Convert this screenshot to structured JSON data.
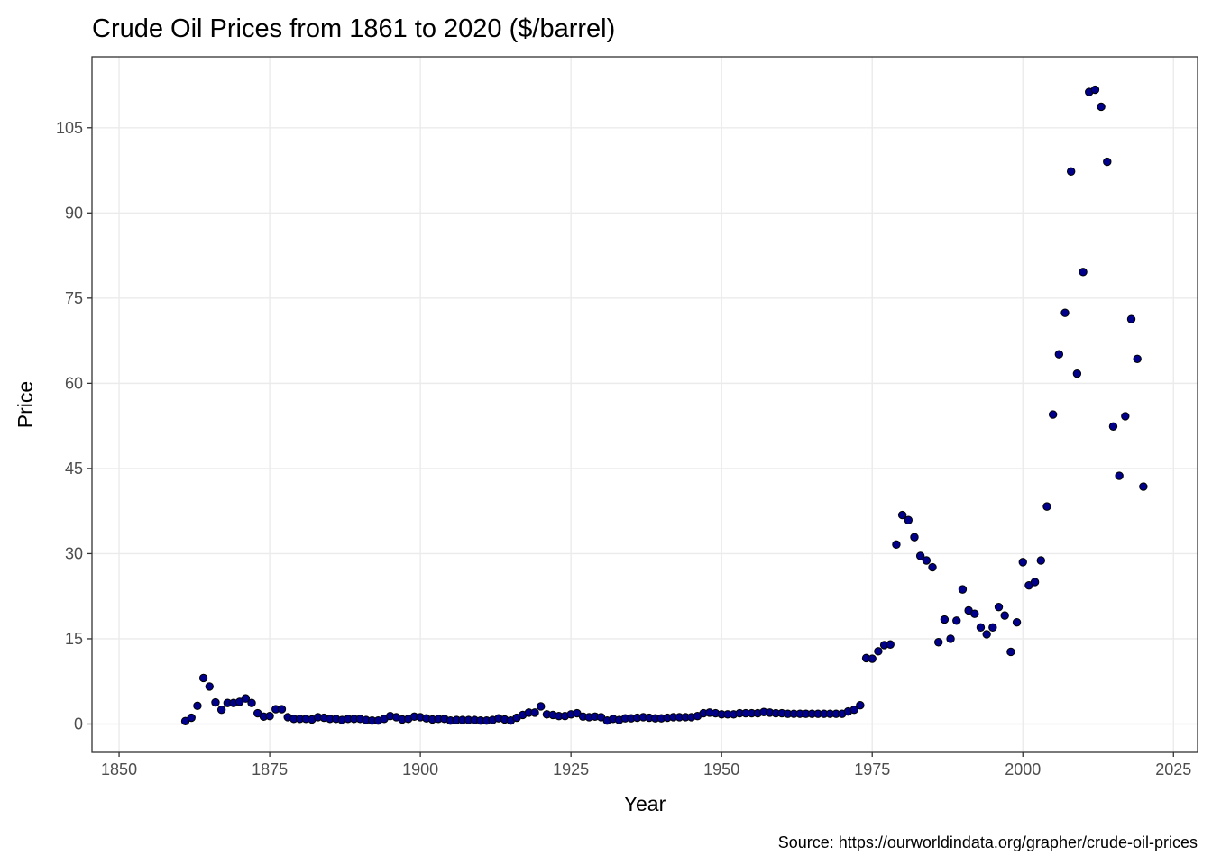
{
  "chart_data": {
    "type": "scatter",
    "title": "Crude Oil Prices from 1861 to 2020 ($/barrel)",
    "xlabel": "Year",
    "ylabel": "Price",
    "caption": "Source: https://ourworldindata.org/grapher/crude-oil-prices",
    "xlim": [
      1845.5,
      2029
    ],
    "ylim": [
      -5,
      117.5
    ],
    "x_ticks": [
      1850,
      1875,
      1900,
      1925,
      1950,
      1975,
      2000,
      2025
    ],
    "y_ticks": [
      0,
      15,
      30,
      45,
      60,
      75,
      90,
      105
    ],
    "grid": true,
    "legend": "none",
    "point_color": "#00008b",
    "point_outline": "#000000",
    "x": [
      1861,
      1862,
      1863,
      1864,
      1865,
      1866,
      1867,
      1868,
      1869,
      1870,
      1871,
      1872,
      1873,
      1874,
      1875,
      1876,
      1877,
      1878,
      1879,
      1880,
      1881,
      1882,
      1883,
      1884,
      1885,
      1886,
      1887,
      1888,
      1889,
      1890,
      1891,
      1892,
      1893,
      1894,
      1895,
      1896,
      1897,
      1898,
      1899,
      1900,
      1901,
      1902,
      1903,
      1904,
      1905,
      1906,
      1907,
      1908,
      1909,
      1910,
      1911,
      1912,
      1913,
      1914,
      1915,
      1916,
      1917,
      1918,
      1919,
      1920,
      1921,
      1922,
      1923,
      1924,
      1925,
      1926,
      1927,
      1928,
      1929,
      1930,
      1931,
      1932,
      1933,
      1934,
      1935,
      1936,
      1937,
      1938,
      1939,
      1940,
      1941,
      1942,
      1943,
      1944,
      1945,
      1946,
      1947,
      1948,
      1949,
      1950,
      1951,
      1952,
      1953,
      1954,
      1955,
      1956,
      1957,
      1958,
      1959,
      1960,
      1961,
      1962,
      1963,
      1964,
      1965,
      1966,
      1967,
      1968,
      1969,
      1970,
      1971,
      1972,
      1973,
      1974,
      1975,
      1976,
      1977,
      1978,
      1979,
      1980,
      1981,
      1982,
      1983,
      1984,
      1985,
      1986,
      1987,
      1988,
      1989,
      1990,
      1991,
      1992,
      1993,
      1994,
      1995,
      1996,
      1997,
      1998,
      1999,
      2000,
      2001,
      2002,
      2003,
      2004,
      2005,
      2006,
      2007,
      2008,
      2009,
      2010,
      2011,
      2012,
      2013,
      2014,
      2015,
      2016,
      2017,
      2018,
      2019,
      2020
    ],
    "y": [
      0.5,
      1.1,
      3.2,
      8.1,
      6.6,
      3.8,
      2.5,
      3.7,
      3.7,
      3.9,
      4.5,
      3.7,
      1.9,
      1.3,
      1.4,
      2.6,
      2.6,
      1.2,
      0.9,
      0.9,
      0.9,
      0.8,
      1.2,
      1.1,
      0.9,
      0.9,
      0.7,
      0.9,
      0.9,
      0.9,
      0.7,
      0.6,
      0.6,
      0.9,
      1.4,
      1.2,
      0.8,
      0.9,
      1.3,
      1.2,
      1.0,
      0.8,
      0.9,
      0.9,
      0.6,
      0.7,
      0.7,
      0.7,
      0.7,
      0.6,
      0.6,
      0.7,
      1.0,
      0.8,
      0.6,
      1.1,
      1.6,
      2.0,
      2.0,
      3.1,
      1.7,
      1.6,
      1.4,
      1.4,
      1.7,
      1.9,
      1.3,
      1.2,
      1.3,
      1.2,
      0.6,
      0.9,
      0.7,
      1.0,
      1.0,
      1.1,
      1.2,
      1.1,
      1.0,
      1.0,
      1.1,
      1.2,
      1.2,
      1.2,
      1.2,
      1.4,
      1.9,
      2.0,
      1.9,
      1.7,
      1.7,
      1.7,
      1.9,
      1.9,
      1.9,
      1.9,
      2.1,
      2.0,
      1.9,
      1.9,
      1.8,
      1.8,
      1.8,
      1.8,
      1.8,
      1.8,
      1.8,
      1.8,
      1.8,
      1.8,
      2.2,
      2.5,
      3.3,
      11.6,
      11.5,
      12.8,
      13.9,
      14.0,
      31.6,
      36.8,
      35.9,
      32.9,
      29.6,
      28.8,
      27.6,
      14.4,
      18.4,
      15.0,
      18.2,
      23.7,
      20.0,
      19.4,
      17.0,
      15.8,
      17.0,
      20.6,
      19.1,
      12.7,
      17.9,
      28.5,
      24.4,
      25.0,
      28.8,
      38.3,
      54.5,
      65.1,
      72.4,
      97.3,
      61.7,
      79.6,
      111.3,
      111.7,
      108.7,
      99.0,
      52.4,
      43.7,
      54.2,
      71.3,
      64.3,
      41.8
    ]
  }
}
